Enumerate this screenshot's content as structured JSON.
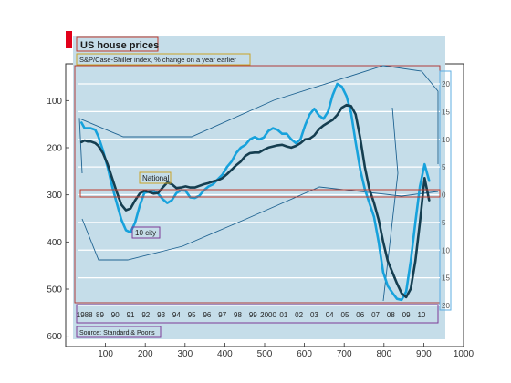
{
  "chart_data": {
    "type": "line",
    "title": "US house prices",
    "subtitle": "S&P/Case-Shiller index, % change on a year earlier",
    "source": "Source: Standard & Poor's",
    "outer_axes": {
      "x_ticks": [
        100,
        200,
        300,
        400,
        500,
        600,
        700,
        800,
        900,
        1000
      ],
      "y_ticks": [
        100,
        200,
        300,
        400,
        500,
        600
      ]
    },
    "inner_axes": {
      "year_labels": [
        "1988",
        "89",
        "90",
        "91",
        "92",
        "93",
        "94",
        "95",
        "96",
        "97",
        "98",
        "99",
        "2000",
        "01",
        "02",
        "03",
        "04",
        "05",
        "06",
        "07",
        "08",
        "09",
        "10"
      ],
      "y_labels": [
        "20",
        "15",
        "10",
        "5",
        "0",
        "5",
        "10",
        "15",
        "20"
      ],
      "y_values": [
        20,
        15,
        10,
        5,
        0,
        -5,
        -10,
        -15,
        -20
      ],
      "ylim": [
        -20,
        20
      ]
    },
    "series": [
      {
        "name": "National",
        "color": "#153e50",
        "x": [
          1987.9,
          1988.1,
          1988.3,
          1988.5,
          1988.8,
          1989.0,
          1989.3,
          1989.6,
          1989.9,
          1990.2,
          1990.5,
          1990.8,
          1991.1,
          1991.4,
          1991.7,
          1992.0,
          1992.3,
          1992.6,
          1992.9,
          1993.2,
          1993.5,
          1993.8,
          1994.1,
          1994.4,
          1994.7,
          1995.0,
          1995.3,
          1995.6,
          1995.9,
          1996.2,
          1996.5,
          1996.8,
          1997.1,
          1997.4,
          1997.7,
          1998.0,
          1998.3,
          1998.6,
          1998.9,
          1999.2,
          1999.5,
          1999.8,
          2000.1,
          2000.4,
          2000.7,
          2001.0,
          2001.3,
          2001.6,
          2001.9,
          2002.2,
          2002.5,
          2002.8,
          2003.1,
          2003.4,
          2003.7,
          2004.0,
          2004.3,
          2004.6,
          2004.9,
          2005.2,
          2005.5,
          2005.8,
          2006.1,
          2006.4,
          2006.7,
          2007.0,
          2007.3,
          2007.6,
          2007.9,
          2008.2,
          2008.5,
          2008.8,
          2009.1,
          2009.4,
          2009.7,
          2010.0,
          2010.3,
          2010.6
        ],
        "y": [
          9.5,
          9.8,
          9.6,
          9.6,
          9.3,
          8.8,
          7.5,
          5.5,
          3.0,
          0.5,
          -1.8,
          -2.8,
          -2.5,
          -1.0,
          0.2,
          0.7,
          0.5,
          0.2,
          0.3,
          1.3,
          2.2,
          1.9,
          1.2,
          1.3,
          1.5,
          1.3,
          1.3,
          1.6,
          1.9,
          2.1,
          2.4,
          2.6,
          3.0,
          3.7,
          4.5,
          5.3,
          6.0,
          7.0,
          7.5,
          7.6,
          7.6,
          8.1,
          8.5,
          8.7,
          8.9,
          9.0,
          8.7,
          8.5,
          8.8,
          9.3,
          10.0,
          10.1,
          10.7,
          11.8,
          12.5,
          13.0,
          13.5,
          14.4,
          15.7,
          16.2,
          16.0,
          14.5,
          10.2,
          5.0,
          1.0,
          -1.5,
          -4.5,
          -8.5,
          -12.0,
          -14.0,
          -16.0,
          -17.8,
          -18.5,
          -17.0,
          -12.0,
          -5.0,
          3.0,
          -1.0
        ]
      },
      {
        "name": "10 city",
        "color": "#17a2dc",
        "x": [
          1987.9,
          1988.1,
          1988.3,
          1988.5,
          1988.8,
          1989.0,
          1989.3,
          1989.6,
          1989.9,
          1990.2,
          1990.5,
          1990.8,
          1991.1,
          1991.4,
          1991.7,
          1992.0,
          1992.3,
          1992.6,
          1992.9,
          1993.2,
          1993.5,
          1993.8,
          1994.1,
          1994.4,
          1994.7,
          1995.0,
          1995.3,
          1995.6,
          1995.9,
          1996.2,
          1996.5,
          1996.8,
          1997.1,
          1997.4,
          1997.7,
          1998.0,
          1998.3,
          1998.6,
          1998.9,
          1999.2,
          1999.5,
          1999.8,
          2000.1,
          2000.4,
          2000.7,
          2001.0,
          2001.3,
          2001.6,
          2001.9,
          2002.2,
          2002.5,
          2002.8,
          2003.1,
          2003.4,
          2003.7,
          2004.0,
          2004.3,
          2004.6,
          2004.9,
          2005.2,
          2005.5,
          2005.8,
          2006.1,
          2006.4,
          2006.7,
          2007.0,
          2007.3,
          2007.6,
          2007.9,
          2008.2,
          2008.5,
          2008.8,
          2009.1,
          2009.4,
          2009.7,
          2010.0,
          2010.3,
          2010.6
        ],
        "y": [
          13.0,
          12.0,
          12.0,
          12.0,
          11.7,
          10.5,
          8.0,
          5.0,
          1.5,
          -1.5,
          -4.5,
          -6.4,
          -6.8,
          -5.0,
          -2.0,
          0.3,
          0.6,
          0.7,
          0.2,
          -0.8,
          -1.5,
          -1.0,
          0.3,
          0.8,
          0.7,
          -0.5,
          -0.6,
          -0.2,
          0.8,
          1.5,
          1.9,
          2.8,
          3.6,
          5.0,
          6.0,
          7.5,
          8.5,
          9.0,
          10.0,
          10.4,
          10.0,
          10.3,
          11.5,
          12.0,
          11.7,
          11.0,
          11.0,
          10.0,
          9.3,
          10.0,
          12.5,
          14.5,
          15.5,
          14.3,
          13.7,
          15.0,
          18.0,
          20.0,
          19.5,
          17.8,
          14.8,
          9.5,
          4.5,
          1.0,
          -1.5,
          -4.0,
          -8.5,
          -14.0,
          -16.5,
          -17.7,
          -18.8,
          -19.0,
          -17.5,
          -12.0,
          -5.0,
          1.5,
          5.5,
          2.5
        ]
      }
    ],
    "series_labels": [
      "National",
      "10 city"
    ]
  }
}
